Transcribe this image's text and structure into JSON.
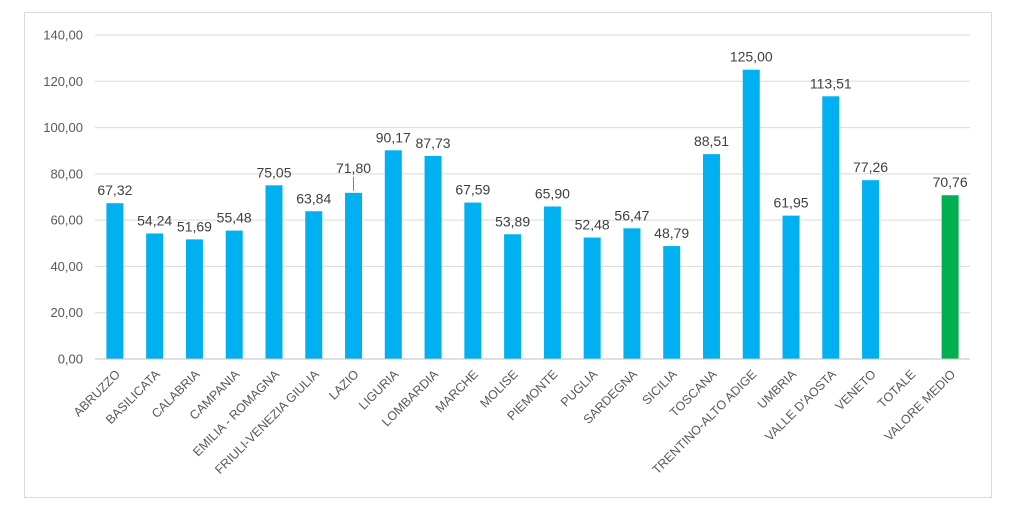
{
  "chart_data": {
    "type": "bar",
    "categories": [
      "ABRUZZO",
      "BASILICATA",
      "CALABRIA",
      "CAMPANIA",
      "EMILIA - ROMAGNA",
      "FRIULI-VENEZIA GIULIA",
      "LAZIO",
      "LIGURIA",
      "LOMBARDIA",
      "MARCHE",
      "MOLISE",
      "PIEMONTE",
      "PUGLIA",
      "SARDEGNA",
      "SICILIA",
      "TOSCANA",
      "TRENTINO-ALTO ADIGE",
      "UMBRIA",
      "VALLE D'AOSTA",
      "VENETO",
      "TOTALE",
      "VALORE MEDIO"
    ],
    "values": [
      67.32,
      54.24,
      51.69,
      55.48,
      75.05,
      63.84,
      71.8,
      90.17,
      87.73,
      67.59,
      53.89,
      65.9,
      52.48,
      56.47,
      48.79,
      88.51,
      125.0,
      61.95,
      113.51,
      77.26,
      null,
      70.76
    ],
    "data_labels": [
      "67,32",
      "54,24",
      "51,69",
      "55,48",
      "75,05",
      "63,84",
      "71,80",
      "90,17",
      "87,73",
      "67,59",
      "53,89",
      "65,90",
      "52,48",
      "56,47",
      "48,79",
      "88,51",
      "125,00",
      "61,95",
      "113,51",
      "77,26",
      "",
      "70,76"
    ],
    "highlight_index": 21,
    "ylim": [
      0,
      140
    ],
    "yticks": [
      "0,00",
      "20,00",
      "40,00",
      "60,00",
      "80,00",
      "100,00",
      "120,00",
      "140,00"
    ],
    "ytick_values": [
      0,
      20,
      40,
      60,
      80,
      100,
      120,
      140
    ],
    "grid": true,
    "title": "",
    "xlabel": "",
    "ylabel": "",
    "colors": {
      "bar": "#00B0F0",
      "highlight": "#00B050",
      "grid": "#d9d9d9"
    }
  }
}
